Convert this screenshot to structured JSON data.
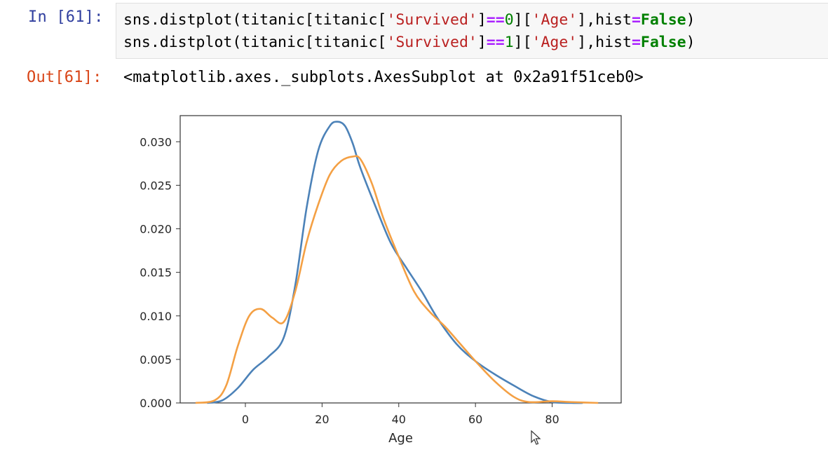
{
  "cell": {
    "in_prompt": "In [61]:",
    "out_prompt": "Out[61]:",
    "code_lines": [
      "sns.distplot(titanic[titanic['Survived']==0]['Age'],hist=False)",
      "sns.distplot(titanic[titanic['Survived']==1]['Age'],hist=False)"
    ],
    "output_text": "<matplotlib.axes._subplots.AxesSubplot at 0x2a91f51ceb0>"
  },
  "colors": {
    "series0": "#4c82b8",
    "series1": "#f4a044"
  },
  "chart_data": {
    "type": "line",
    "title": "",
    "xlabel": "Age",
    "ylabel": "",
    "xlim": [
      -17,
      98
    ],
    "ylim": [
      0,
      0.033
    ],
    "xticks": [
      0,
      20,
      40,
      60,
      80
    ],
    "xtick_labels": [
      "0",
      "20",
      "40",
      "60",
      "80"
    ],
    "yticks": [
      0,
      0.005,
      0.01,
      0.015,
      0.02,
      0.025,
      0.03
    ],
    "ytick_labels": [
      "0.000",
      "0.005",
      "0.010",
      "0.015",
      "0.020",
      "0.025",
      "0.030"
    ],
    "grid": false,
    "series": [
      {
        "x": [
          -10,
          -6,
          -2,
          2,
          6,
          10,
          13,
          16,
          19,
          22,
          24,
          26,
          28,
          30,
          34,
          38,
          42,
          46,
          50,
          55,
          60,
          65,
          70,
          75,
          80,
          85,
          88
        ],
        "y": [
          0.0,
          0.0003,
          0.0017,
          0.0038,
          0.0053,
          0.0075,
          0.0135,
          0.0225,
          0.029,
          0.0318,
          0.0323,
          0.0318,
          0.0298,
          0.027,
          0.0225,
          0.0183,
          0.0155,
          0.0128,
          0.0098,
          0.0068,
          0.0048,
          0.0033,
          0.002,
          0.0008,
          0.0001,
          0.0,
          0.0
        ]
      },
      {
        "x": [
          -13,
          -8,
          -5,
          -2,
          1,
          4,
          7,
          10,
          13,
          16,
          19,
          22,
          25,
          28,
          30,
          33,
          36,
          40,
          44,
          48,
          52,
          56,
          60,
          65,
          70,
          74,
          80,
          85,
          92
        ],
        "y": [
          0.0,
          0.0003,
          0.002,
          0.0065,
          0.01,
          0.0108,
          0.0098,
          0.0093,
          0.0128,
          0.0185,
          0.0228,
          0.0262,
          0.0278,
          0.0283,
          0.028,
          0.0252,
          0.0212,
          0.0168,
          0.0128,
          0.0105,
          0.0088,
          0.0068,
          0.0048,
          0.0025,
          0.0007,
          0.0001,
          0.0002,
          0.0001,
          0.0
        ]
      }
    ]
  }
}
